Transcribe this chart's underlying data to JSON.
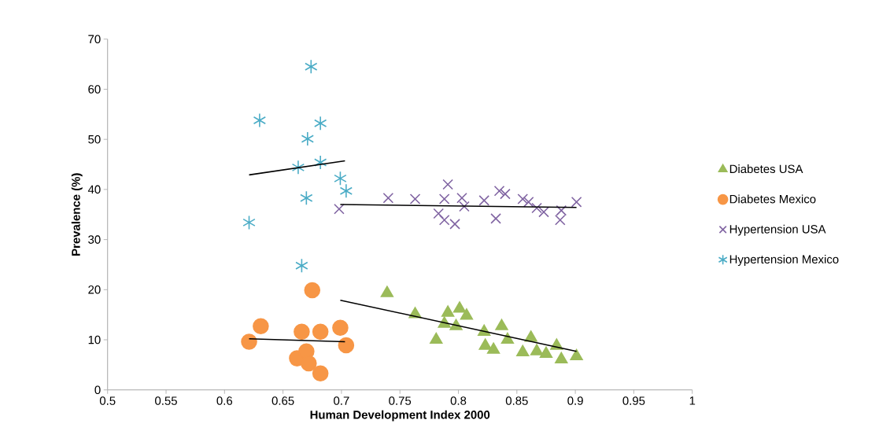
{
  "chart_data": {
    "type": "scatter",
    "xlabel": "Human Development Index 2000",
    "ylabel": "Prevalence (%)",
    "xlim": [
      0.5,
      1
    ],
    "ylim": [
      0,
      70
    ],
    "xticks": [
      0.5,
      0.55,
      0.6,
      0.65,
      0.7,
      0.75,
      0.8,
      0.85,
      0.9,
      0.95,
      1
    ],
    "yticks": [
      0,
      10,
      20,
      30,
      40,
      50,
      60,
      70
    ],
    "grid": false,
    "legend": "right",
    "series": [
      {
        "name": "Diabetes USA",
        "marker": "triangle",
        "color": "#9bbb59",
        "x": [
          0.739,
          0.763,
          0.781,
          0.791,
          0.788,
          0.801,
          0.807,
          0.798,
          0.822,
          0.823,
          0.83,
          0.837,
          0.842,
          0.855,
          0.862,
          0.867,
          0.875,
          0.884,
          0.888,
          0.901
        ],
        "values": [
          19.3,
          15.1,
          10.0,
          15.4,
          13.2,
          16.2,
          14.8,
          12.7,
          11.6,
          8.8,
          8.0,
          12.7,
          10.0,
          7.5,
          10.4,
          7.7,
          7.2,
          8.8,
          6.1,
          6.7
        ]
      },
      {
        "name": "Diabetes Mexico",
        "marker": "circle",
        "color": "#f79646",
        "x": [
          0.675,
          0.631,
          0.621,
          0.666,
          0.682,
          0.699,
          0.704,
          0.662,
          0.67,
          0.672,
          0.682
        ],
        "values": [
          19.9,
          12.7,
          9.6,
          11.6,
          11.6,
          12.4,
          8.9,
          6.3,
          7.7,
          5.3,
          3.3
        ]
      },
      {
        "name": "Hypertension USA",
        "marker": "cross",
        "color": "#8064a2",
        "x": [
          0.698,
          0.74,
          0.763,
          0.791,
          0.788,
          0.783,
          0.788,
          0.797,
          0.803,
          0.805,
          0.822,
          0.832,
          0.835,
          0.84,
          0.855,
          0.86,
          0.867,
          0.873,
          0.887,
          0.888,
          0.901
        ],
        "values": [
          36.1,
          38.3,
          38.1,
          41.0,
          38.1,
          35.2,
          33.9,
          33.1,
          38.3,
          36.6,
          37.8,
          34.2,
          39.7,
          39.1,
          38.1,
          37.5,
          36.3,
          35.5,
          33.9,
          35.8,
          37.5
        ]
      },
      {
        "name": "Hypertension Mexico",
        "color": "#4bacc6",
        "x": [
          0.674,
          0.63,
          0.682,
          0.671,
          0.663,
          0.682,
          0.699,
          0.704,
          0.67,
          0.621,
          0.666
        ],
        "values": [
          64.5,
          53.8,
          53.2,
          50.1,
          44.4,
          45.4,
          42.2,
          39.7,
          38.3,
          33.4,
          24.8
        ]
      },
      {
        "type": "line",
        "marker": "none",
        "line_style": "solid",
        "color": "#000000",
        "x": [
          0.621,
          0.703
        ],
        "values": [
          42.9,
          45.7
        ]
      },
      {
        "type": "line",
        "marker": "none",
        "line_style": "solid",
        "color": "#000000",
        "x": [
          0.621,
          0.703
        ],
        "values": [
          10.2,
          9.6
        ]
      },
      {
        "type": "line",
        "marker": "none",
        "line_style": "solid",
        "color": "#000000",
        "x": [
          0.699,
          0.901
        ],
        "values": [
          17.9,
          7.7
        ]
      },
      {
        "type": "line",
        "marker": "none",
        "line_style": "solid",
        "color": "#000000",
        "x": [
          0.699,
          0.901
        ],
        "values": [
          37.0,
          36.4
        ]
      }
    ]
  }
}
